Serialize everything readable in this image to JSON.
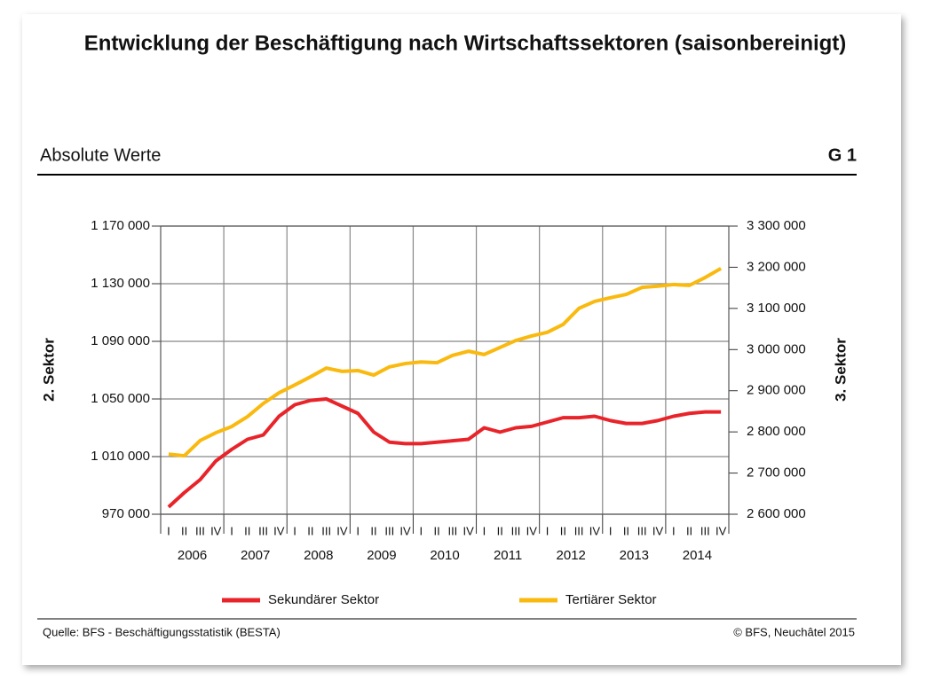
{
  "chart_data": {
    "type": "line",
    "title": "Entwicklung der Beschäftigung nach Wirtschaftssektoren (saisonbereinigt)",
    "subtitle": "Absolute Werte",
    "chart_id": "G 1",
    "y_label": "2. Sektor",
    "y2_label": "3. Sektor",
    "categories": [
      "I",
      "II",
      "III",
      "IV",
      "I",
      "II",
      "III",
      "IV",
      "I",
      "II",
      "III",
      "IV",
      "I",
      "II",
      "III",
      "IV",
      "I",
      "II",
      "III",
      "IV",
      "I",
      "II",
      "III",
      "IV",
      "I",
      "II",
      "III",
      "IV",
      "I",
      "II",
      "III",
      "IV",
      "I",
      "II",
      "III",
      "IV"
    ],
    "years": [
      "2006",
      "2007",
      "2008",
      "2009",
      "2010",
      "2011",
      "2012",
      "2013",
      "2014"
    ],
    "series": [
      {
        "name": "Sekundärer Sektor",
        "color": "#e8242a",
        "axis": "y",
        "values": [
          975000,
          985000,
          994000,
          1007000,
          1015000,
          1022000,
          1025000,
          1038000,
          1046000,
          1049000,
          1050000,
          1045000,
          1040000,
          1027000,
          1020000,
          1019000,
          1019000,
          1020000,
          1021000,
          1022000,
          1030000,
          1027000,
          1030000,
          1031000,
          1034000,
          1037000,
          1037000,
          1038000,
          1035000,
          1033000,
          1033000,
          1035000,
          1038000,
          1040000,
          1041000,
          1041000
        ]
      },
      {
        "name": "Tertiärer Sektor",
        "color": "#f9b90f",
        "axis": "y2",
        "values": [
          2746000,
          2742000,
          2779000,
          2798000,
          2813000,
          2837000,
          2869000,
          2895000,
          2914000,
          2934000,
          2955000,
          2947000,
          2949000,
          2938000,
          2958000,
          2966000,
          2970000,
          2968000,
          2986000,
          2996000,
          2988000,
          3005000,
          3022000,
          3033000,
          3042000,
          3061000,
          3100000,
          3117000,
          3126000,
          3134000,
          3151000,
          3154000,
          3158000,
          3156000,
          3175000,
          3197000
        ]
      }
    ],
    "ylim": [
      970000,
      1170000
    ],
    "yticks": [
      {
        "value": 970000,
        "label": "970 000"
      },
      {
        "value": 1010000,
        "label": "1 010 000"
      },
      {
        "value": 1050000,
        "label": "1 050 000"
      },
      {
        "value": 1090000,
        "label": "1 090 000"
      },
      {
        "value": 1130000,
        "label": "1 130 000"
      },
      {
        "value": 1170000,
        "label": "1 170 000"
      }
    ],
    "y2lim": [
      2600000,
      3300000
    ],
    "y2ticks": [
      {
        "value": 2600000,
        "label": "2 600 000"
      },
      {
        "value": 2700000,
        "label": "2 700 000"
      },
      {
        "value": 2800000,
        "label": "2 800 000"
      },
      {
        "value": 2900000,
        "label": "2 900 000"
      },
      {
        "value": 3000000,
        "label": "3 000 000"
      },
      {
        "value": 3100000,
        "label": "3 100 000"
      },
      {
        "value": 3200000,
        "label": "3 200 000"
      },
      {
        "value": 3300000,
        "label": "3 300 000"
      }
    ],
    "grid": true,
    "legend": "bottom",
    "source": "Quelle: BFS - Beschäftigungsstatistik (BESTA)",
    "copyright": "© BFS, Neuchâtel 2015"
  }
}
